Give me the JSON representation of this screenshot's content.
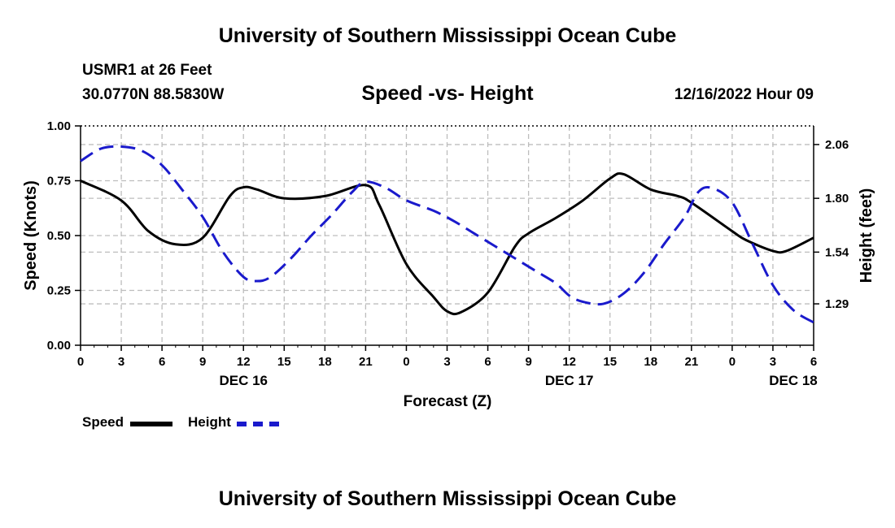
{
  "header": {
    "title": "University of Southern Mississippi Ocean Cube",
    "station": "USMR1 at 26 Feet",
    "coordinates": "30.0770N  88.5830W",
    "datetime": "12/16/2022 Hour 09"
  },
  "footer": {
    "title": "University of Southern Mississippi Ocean Cube"
  },
  "legend": {
    "speed_label": "Speed",
    "height_label": "Height"
  },
  "colors": {
    "speed": "#000000",
    "height": "#1a1acc",
    "grid": "#bdbdbd"
  },
  "chart_data": {
    "type": "line",
    "title": "Speed -vs- Height",
    "xlabel": "Forecast (Z)",
    "ylabel": "Speed (Knots)",
    "y2label": "Height (feet)",
    "xlim": [
      0,
      54
    ],
    "ylim": [
      0,
      1
    ],
    "y2lim": [
      1.09,
      2.15
    ],
    "x_ticks": [
      0,
      3,
      6,
      9,
      12,
      15,
      18,
      21,
      24,
      27,
      30,
      33,
      36,
      39,
      42,
      45,
      48,
      51,
      54
    ],
    "x_tick_labels": [
      "0",
      "3",
      "6",
      "9",
      "12",
      "15",
      "18",
      "21",
      "0",
      "3",
      "6",
      "9",
      "12",
      "15",
      "18",
      "21",
      "0",
      "3",
      "6"
    ],
    "date_labels": [
      {
        "x": 12,
        "label": "DEC 16"
      },
      {
        "x": 36,
        "label": "DEC 17"
      },
      {
        "x": 52.5,
        "label": "DEC 18"
      }
    ],
    "y_ticks": [
      0,
      0.25,
      0.5,
      0.75,
      1
    ],
    "y_tick_labels": [
      "0.00",
      "0.25",
      "0.50",
      "0.75",
      "1.00"
    ],
    "y2_ticks": [
      1.29,
      1.54,
      1.8,
      2.06
    ],
    "y2_tick_labels": [
      "1.29",
      "1.54",
      "1.80",
      "2.06"
    ],
    "series": [
      {
        "name": "Speed",
        "axis": "left",
        "x": [
          0,
          3,
          5,
          7,
          9,
          11,
          12,
          13,
          15,
          18,
          21,
          22,
          24,
          26,
          27,
          28,
          30,
          32,
          33,
          35,
          37,
          39,
          40,
          42,
          44,
          45,
          48,
          49,
          51,
          52,
          54
        ],
        "values": [
          0.75,
          0.66,
          0.52,
          0.46,
          0.49,
          0.68,
          0.72,
          0.71,
          0.67,
          0.68,
          0.73,
          0.64,
          0.37,
          0.22,
          0.155,
          0.15,
          0.24,
          0.45,
          0.51,
          0.58,
          0.66,
          0.76,
          0.78,
          0.71,
          0.68,
          0.65,
          0.52,
          0.48,
          0.43,
          0.43,
          0.49
        ]
      },
      {
        "name": "Height",
        "axis": "right",
        "x": [
          0,
          1.5,
          3,
          4.5,
          6,
          7.5,
          9,
          10.5,
          12,
          13,
          14,
          15.5,
          17,
          18.5,
          20,
          21,
          22.5,
          24,
          26,
          27.5,
          29,
          30.5,
          32,
          33.5,
          35,
          36,
          37,
          38.5,
          40,
          41.5,
          43,
          44.5,
          45.5,
          46.5,
          48,
          49.5,
          51,
          52.5,
          54
        ],
        "values": [
          1.98,
          2.04,
          2.05,
          2.03,
          1.96,
          1.84,
          1.71,
          1.54,
          1.42,
          1.4,
          1.42,
          1.51,
          1.62,
          1.72,
          1.83,
          1.88,
          1.85,
          1.79,
          1.74,
          1.69,
          1.63,
          1.57,
          1.51,
          1.45,
          1.39,
          1.33,
          1.3,
          1.29,
          1.34,
          1.44,
          1.58,
          1.71,
          1.83,
          1.85,
          1.78,
          1.58,
          1.38,
          1.26,
          1.2
        ]
      }
    ]
  }
}
